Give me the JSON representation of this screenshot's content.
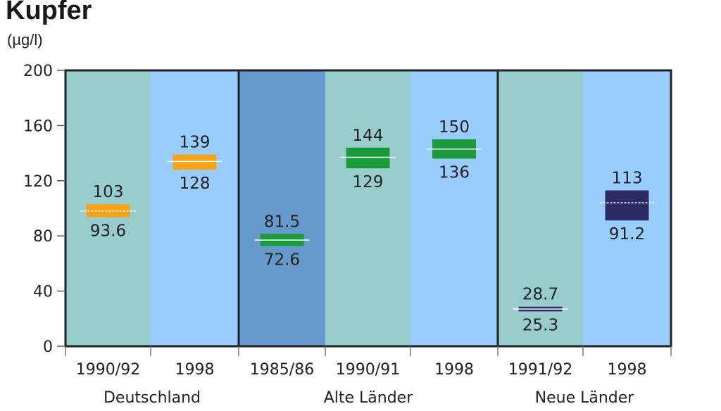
{
  "chart_data": {
    "type": "range-bar",
    "title": "Kupfer",
    "unit": "(µg/l)",
    "ylim": [
      0,
      200
    ],
    "yticks": [
      0,
      40,
      80,
      120,
      160,
      200
    ],
    "categories": [
      "1990/92",
      "1998",
      "1985/86",
      "1990/91",
      "1998",
      "1991/92",
      "1998"
    ],
    "groups": [
      {
        "name": "Deutschland",
        "categories": [
          "1990/92",
          "1998"
        ]
      },
      {
        "name": "Alte Länder",
        "categories": [
          "1985/86",
          "1990/91",
          "1998"
        ]
      },
      {
        "name": "Neue Länder",
        "categories": [
          "1991/92",
          "1998"
        ]
      }
    ],
    "ranges": [
      {
        "category": "1990/92",
        "group": "Deutschland",
        "low": 93.6,
        "high": 103,
        "low_label": "93.6",
        "high_label": "103",
        "mid": 98,
        "color": "#f5a31a",
        "bg": "#99cccc"
      },
      {
        "category": "1998",
        "group": "Deutschland",
        "low": 128,
        "high": 139,
        "low_label": "128",
        "high_label": "139",
        "mid": 134,
        "color": "#f5a31a",
        "bg": "#99ccff"
      },
      {
        "category": "1985/86",
        "group": "Alte Länder",
        "low": 72.6,
        "high": 81.5,
        "low_label": "72.6",
        "high_label": "81.5",
        "mid": 77,
        "color": "#1a9a3a",
        "bg": "#6699cc"
      },
      {
        "category": "1990/91",
        "group": "Alte Länder",
        "low": 129,
        "high": 144,
        "low_label": "129",
        "high_label": "144",
        "mid": 137,
        "color": "#1a9a3a",
        "bg": "#99cccc"
      },
      {
        "category": "1998",
        "group": "Alte Länder",
        "low": 136,
        "high": 150,
        "low_label": "136",
        "high_label": "150",
        "mid": 143,
        "color": "#1a9a3a",
        "bg": "#99ccff"
      },
      {
        "category": "1991/92",
        "group": "Neue Länder",
        "low": 25.3,
        "high": 28.7,
        "low_label": "25.3",
        "high_label": "28.7",
        "mid": 27,
        "color": "#2b2b66",
        "bg": "#99cccc"
      },
      {
        "category": "1998",
        "group": "Neue Länder",
        "low": 91.2,
        "high": 113,
        "low_label": "91.2",
        "high_label": "113",
        "mid": 104,
        "color": "#2b2b66",
        "bg": "#99ccff"
      }
    ]
  }
}
